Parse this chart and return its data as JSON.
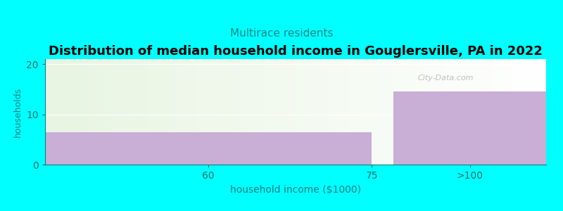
{
  "title": "Distribution of median household income in Gouglersville, PA in 2022",
  "subtitle": "Multirace residents",
  "xlabel": "household income ($1000)",
  "ylabel": "households",
  "background_color": "#00FFFF",
  "plot_bg_gradient_left": "#e8f5e2",
  "plot_bg_gradient_right": "#ffffff",
  "bar_color": "#c9aed6",
  "bars": [
    {
      "x0": 0,
      "x1": 75,
      "height": 6.5
    },
    {
      "x0": 80,
      "x1": 115,
      "height": 14.5
    }
  ],
  "xlim": [
    0,
    115
  ],
  "ylim": [
    0,
    21
  ],
  "yticks": [
    0,
    10,
    20
  ],
  "xtick_positions": [
    37.5,
    75,
    97.5
  ],
  "xtick_labels": [
    "60",
    "75",
    ">100"
  ],
  "watermark": "City-Data.com",
  "title_fontsize": 13,
  "subtitle_fontsize": 11,
  "subtitle_color": "#008888",
  "axis_color": "#008080",
  "tick_color": "#007070",
  "grid_color": "#ffffff",
  "ylabel_fontsize": 9,
  "xlabel_fontsize": 10
}
